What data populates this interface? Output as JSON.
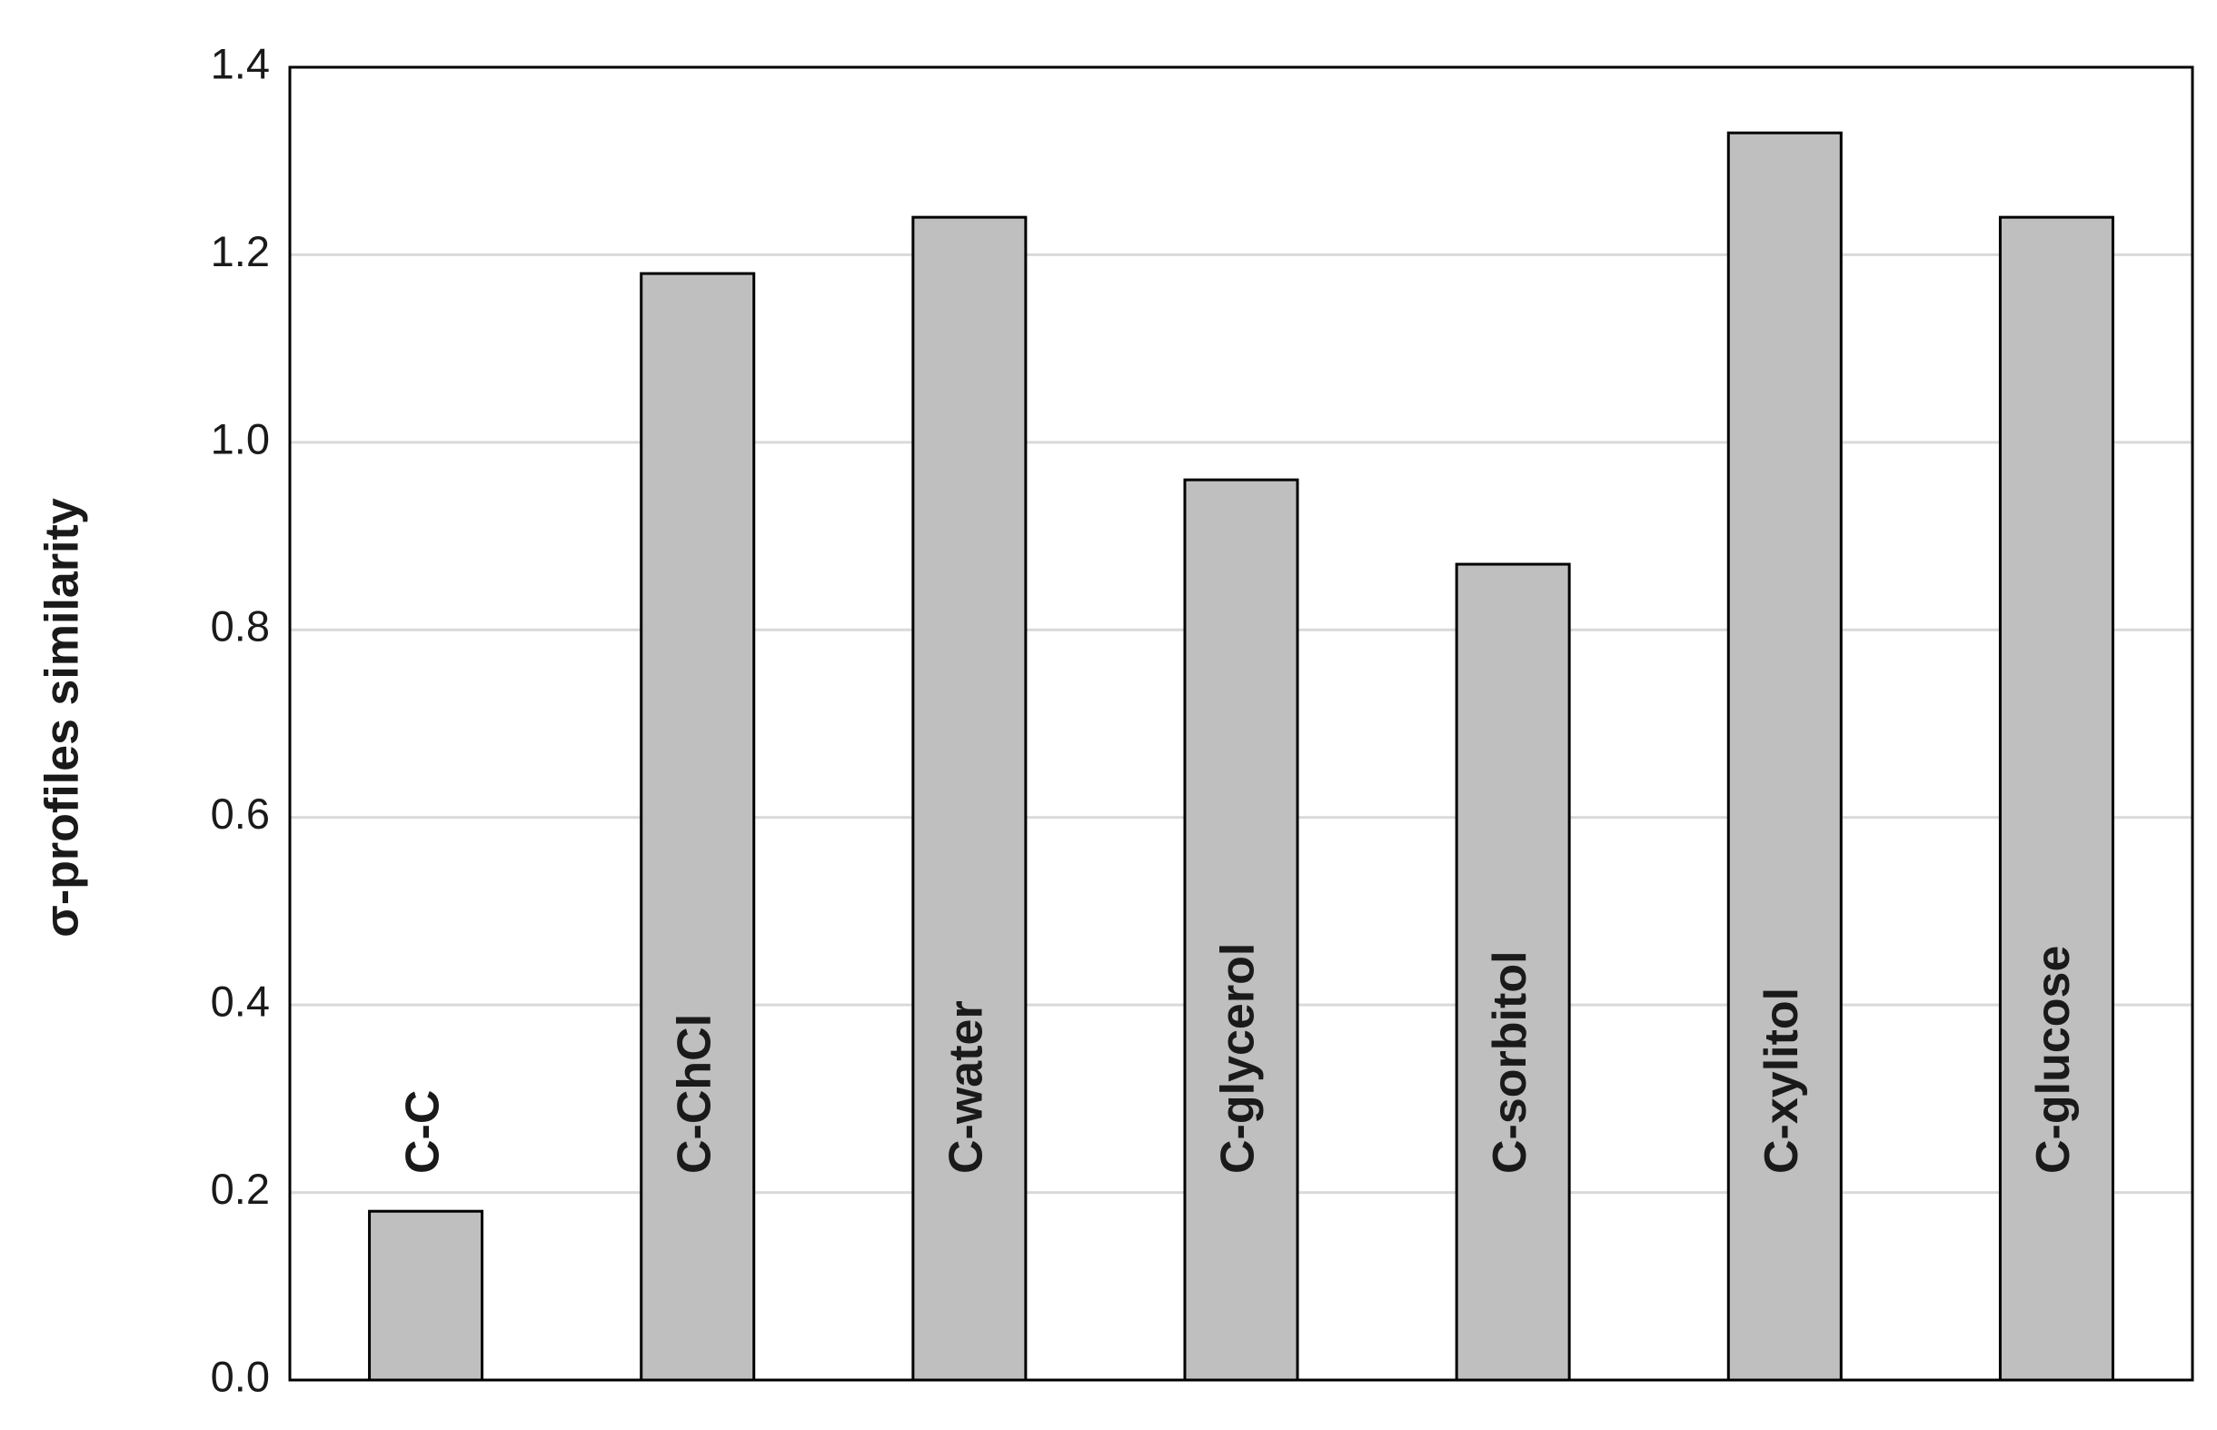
{
  "chart_data": {
    "type": "bar",
    "ylabel": "σ-profiles similarity",
    "categories": [
      "C-C",
      "C-ChCl",
      "C-water",
      "C-glycerol",
      "C-sorbitol",
      "C-xylitol",
      "C-glucose"
    ],
    "values": [
      0.18,
      1.18,
      1.24,
      0.96,
      0.87,
      1.33,
      1.24
    ],
    "color": "#bfbfbf",
    "ylim": [
      0,
      1.4
    ],
    "yticks": [
      {
        "value": 0,
        "label": "0.0"
      },
      0.2,
      0.4,
      0.6,
      0.8,
      {
        "value": 1,
        "label": "1.0"
      },
      1.2,
      1.4
    ],
    "grid": true
  }
}
